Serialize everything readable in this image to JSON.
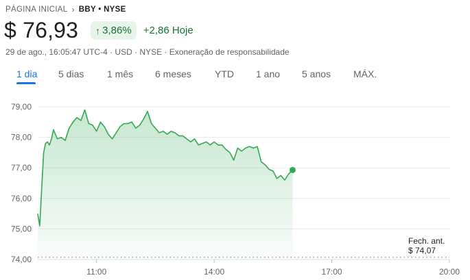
{
  "breadcrumb": {
    "home": "PÁGINA INICIAL",
    "current": "BBY • NYSE"
  },
  "quote": {
    "price": "$ 76,93",
    "change_pct": "3,86%",
    "change_abs": "+2,86 Hoje"
  },
  "meta_line": "29 de ago., 16:05:47 UTC-4 · USD · NYSE · Exoneração de responsabilidade",
  "tabs": [
    {
      "label": "1 dia",
      "active": true
    },
    {
      "label": "5 dias"
    },
    {
      "label": "1 mês"
    },
    {
      "label": "6 meses"
    },
    {
      "label": "YTD"
    },
    {
      "label": "1 ano"
    },
    {
      "label": "5 anos"
    },
    {
      "label": "MÁX."
    }
  ],
  "prev_close": {
    "label": "Fech. ant.",
    "value": "$ 74,07"
  },
  "colors": {
    "accent": "#1a73e8",
    "positive": "#34a853",
    "positive_text": "#137333"
  },
  "chart_data": {
    "type": "area",
    "x_ticks": [
      "11:00",
      "14:00",
      "17:00",
      "20:00"
    ],
    "x_range": [
      "09:30",
      "20:00"
    ],
    "y_ticks": [
      "79,00",
      "78,00",
      "77,00",
      "76,00",
      "75,00",
      "74,00"
    ],
    "ylim": [
      74,
      79
    ],
    "grid": true,
    "previous_close": 74.07,
    "series": [
      {
        "x": [
          "09:30",
          "09:33",
          "09:36",
          "09:39",
          "09:42",
          "09:45",
          "09:48",
          "09:51",
          "09:54",
          "10:00",
          "10:06",
          "10:12",
          "10:18",
          "10:24",
          "10:30",
          "10:36",
          "10:42",
          "10:48",
          "10:54",
          "11:00",
          "11:06",
          "11:12",
          "11:18",
          "11:24",
          "11:30",
          "11:36",
          "11:42",
          "11:48",
          "11:54",
          "12:00",
          "12:06",
          "12:12",
          "12:18",
          "12:24",
          "12:30",
          "12:36",
          "12:42",
          "12:48",
          "12:54",
          "13:00",
          "13:06",
          "13:12",
          "13:18",
          "13:24",
          "13:30",
          "13:36",
          "13:42",
          "13:48",
          "13:54",
          "14:00",
          "14:06",
          "14:12",
          "14:18",
          "14:24",
          "14:30",
          "14:36",
          "14:42",
          "14:48",
          "14:54",
          "15:00",
          "15:06",
          "15:12",
          "15:18",
          "15:24",
          "15:30",
          "15:36",
          "15:42",
          "15:48",
          "15:54",
          "16:00"
        ],
        "values": [
          75.5,
          75.1,
          76.3,
          77.5,
          77.8,
          77.85,
          77.75,
          77.95,
          78.25,
          77.95,
          78.0,
          77.9,
          78.3,
          78.5,
          78.65,
          78.55,
          78.9,
          78.45,
          78.4,
          78.2,
          78.5,
          78.35,
          78.1,
          77.95,
          78.15,
          78.35,
          78.45,
          78.45,
          78.5,
          78.3,
          78.4,
          78.6,
          78.85,
          78.45,
          78.3,
          78.15,
          78.2,
          78.1,
          78.2,
          78.15,
          78.05,
          78.05,
          77.95,
          77.85,
          77.95,
          77.75,
          77.8,
          77.85,
          77.75,
          77.85,
          77.75,
          77.75,
          77.6,
          77.5,
          77.25,
          77.65,
          77.55,
          77.65,
          77.7,
          77.65,
          77.7,
          77.2,
          77.1,
          76.95,
          76.9,
          76.65,
          76.75,
          76.6,
          76.8,
          76.93
        ]
      }
    ]
  }
}
